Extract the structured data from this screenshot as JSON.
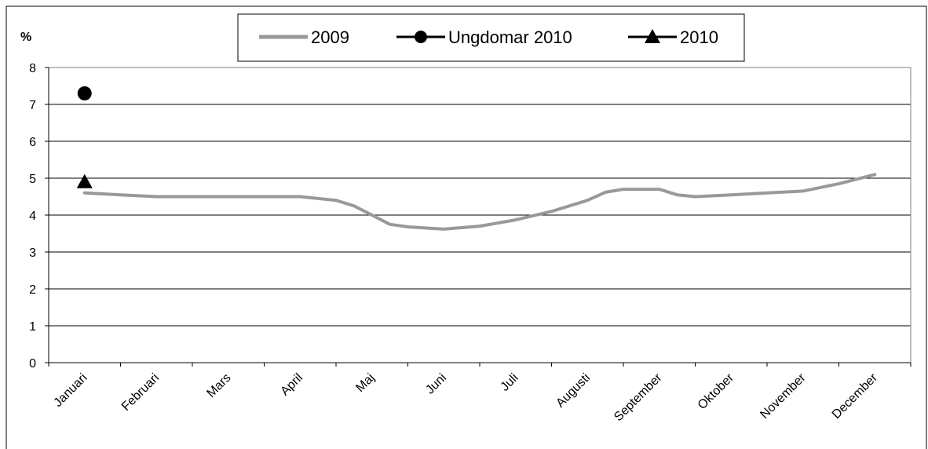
{
  "chart_data": {
    "type": "line",
    "title": "",
    "xlabel": "",
    "ylabel": "%",
    "ylim": [
      0,
      8
    ],
    "yticks": [
      0,
      1,
      2,
      3,
      4,
      5,
      6,
      7,
      8
    ],
    "grid": true,
    "legend_position": "top-center",
    "categories": [
      "Januari",
      "Februari",
      "Mars",
      "April",
      "Maj",
      "Juni",
      "Juli",
      "Augusti",
      "September",
      "Oktober",
      "November",
      "December"
    ],
    "series": [
      {
        "name": "2009",
        "color": "#999999",
        "marker": "none",
        "x": [
          0,
          0.5,
          1,
          1.5,
          2,
          2.5,
          3,
          3.5,
          3.75,
          4,
          4.25,
          4.5,
          5,
          5.5,
          6,
          6.5,
          7,
          7.25,
          7.5,
          8,
          8.25,
          8.5,
          9,
          9.5,
          10,
          10.5,
          11
        ],
        "values": [
          4.6,
          4.55,
          4.5,
          4.5,
          4.5,
          4.5,
          4.5,
          4.4,
          4.25,
          4.0,
          3.75,
          3.68,
          3.62,
          3.7,
          3.87,
          4.1,
          4.4,
          4.62,
          4.7,
          4.7,
          4.55,
          4.5,
          4.55,
          4.6,
          4.65,
          4.85,
          5.1
        ]
      },
      {
        "name": "Ungdomar 2010",
        "color": "#000000",
        "marker": "circle",
        "x": [
          0
        ],
        "values": [
          7.3
        ]
      },
      {
        "name": "2010",
        "color": "#000000",
        "marker": "triangle",
        "x": [
          0
        ],
        "values": [
          4.9
        ]
      }
    ]
  }
}
